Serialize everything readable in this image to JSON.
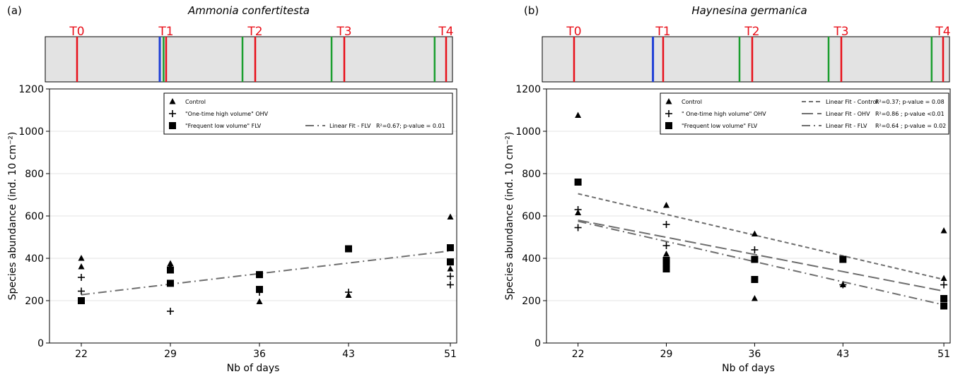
{
  "chart_data": [
    {
      "type": "scatter",
      "panel_label": "(a)",
      "title": "Ammonia confertitesta",
      "xlabel": "Nb of days",
      "ylabel": "Species abundance (ind. 10 cm⁻²)",
      "x_ticks": [
        22,
        29,
        36,
        43,
        51
      ],
      "xlim": [
        19.5,
        51.5
      ],
      "ylim": [
        0,
        1200
      ],
      "y_ticks": [
        0,
        200,
        400,
        600,
        800,
        1000,
        1200
      ],
      "grid": true,
      "legend_position": "top-right",
      "timeline": {
        "labels": [
          {
            "text": "T0",
            "x": 22
          },
          {
            "text": "T1",
            "x": 29
          },
          {
            "text": "T2",
            "x": 36
          },
          {
            "text": "T3",
            "x": 43
          },
          {
            "text": "T4",
            "x": 51
          }
        ],
        "red_lines": [
          22,
          29,
          36,
          43,
          51
        ],
        "green_lines": [
          28.8,
          35,
          42,
          50.1
        ],
        "blue_lines": [
          28.5
        ],
        "colors": {
          "red": "#e8101a",
          "green": "#1a9e2e",
          "blue": "#1f3fd6",
          "background": "#e3e3e3"
        }
      },
      "series": [
        {
          "name": "Control",
          "marker": "triangle",
          "points": [
            [
              22,
              400
            ],
            [
              22,
              360
            ],
            [
              29,
              375
            ],
            [
              29,
              360
            ],
            [
              36,
              195
            ],
            [
              43,
              225
            ],
            [
              51,
              595
            ],
            [
              51,
              350
            ]
          ]
        },
        {
          "name": "\"One-time high volume\" OHV",
          "marker": "plus",
          "points": [
            [
              22,
              310
            ],
            [
              22,
              245
            ],
            [
              29,
              150
            ],
            [
              36,
              240
            ],
            [
              43,
              240
            ],
            [
              51,
              315
            ],
            [
              51,
              275
            ]
          ]
        },
        {
          "name": "\"Frequent low volume\" FLV",
          "marker": "square",
          "points": [
            [
              22,
              200
            ],
            [
              29,
              345
            ],
            [
              29,
              282
            ],
            [
              36,
              323
            ],
            [
              36,
              253
            ],
            [
              43,
              445
            ],
            [
              51,
              450
            ],
            [
              51,
              383
            ]
          ]
        }
      ],
      "fits": [
        {
          "name": "Linear Fit - FLV",
          "stats": "R²=0.67; p-value = 0.01",
          "style": "dashdot",
          "from": [
            22,
            228
          ],
          "to": [
            51,
            435
          ]
        }
      ]
    },
    {
      "type": "scatter",
      "panel_label": "(b)",
      "title": "Haynesina germanica",
      "xlabel": "Nb of days",
      "ylabel": "Species abundance (ind. 10 cm⁻²)",
      "x_ticks": [
        22,
        29,
        36,
        43,
        51
      ],
      "xlim": [
        19.5,
        51.5
      ],
      "ylim": [
        0,
        1200
      ],
      "y_ticks": [
        0,
        200,
        400,
        600,
        800,
        1000,
        1200
      ],
      "grid": true,
      "legend_position": "top-right",
      "timeline": {
        "labels": [
          {
            "text": "T0",
            "x": 22
          },
          {
            "text": "T1",
            "x": 29
          },
          {
            "text": "T2",
            "x": 36
          },
          {
            "text": "T3",
            "x": 43
          },
          {
            "text": "T4",
            "x": 51
          }
        ],
        "red_lines": [
          22,
          29,
          36,
          43,
          51
        ],
        "green_lines": [
          35,
          42,
          50.1
        ],
        "blue_lines": [
          28.2
        ],
        "colors": {
          "red": "#e8101a",
          "green": "#1a9e2e",
          "blue": "#1f3fd6",
          "background": "#e3e3e3"
        }
      },
      "series": [
        {
          "name": "Control",
          "marker": "triangle",
          "points": [
            [
              22,
              1075
            ],
            [
              22,
              615
            ],
            [
              29,
              650
            ],
            [
              29,
              420
            ],
            [
              36,
              515
            ],
            [
              36,
              210
            ],
            [
              43,
              275
            ],
            [
              51,
              530
            ],
            [
              51,
              305
            ]
          ]
        },
        {
          "name": "\" One-time high volume\" OHV",
          "marker": "plus",
          "points": [
            [
              22,
              630
            ],
            [
              22,
              545
            ],
            [
              29,
              560
            ],
            [
              29,
              460
            ],
            [
              36,
              440
            ],
            [
              43,
              275
            ],
            [
              51,
              275
            ]
          ]
        },
        {
          "name": "\"Frequent low volume\" FLV",
          "marker": "square",
          "points": [
            [
              22,
              760
            ],
            [
              29,
              390
            ],
            [
              29,
              375
            ],
            [
              29,
              350
            ],
            [
              36,
              395
            ],
            [
              36,
              300
            ],
            [
              43,
              395
            ],
            [
              51,
              210
            ],
            [
              51,
              175
            ]
          ]
        }
      ],
      "fits": [
        {
          "name": "Linear Fit - Control",
          "stats": "R²=0.37; p-value = 0.08",
          "style": "short-dash",
          "from": [
            22,
            705
          ],
          "to": [
            51,
            300
          ]
        },
        {
          "name": "Linear Fit - OHV",
          "stats": "R²=0.86 ; p-value <0.01",
          "style": "long-dash",
          "from": [
            22,
            580
          ],
          "to": [
            51,
            245
          ]
        },
        {
          "name": "Linear Fit - FLV",
          "stats": "R²=0.64 ; p-value = 0.02",
          "style": "dashdot",
          "from": [
            22,
            575
          ],
          "to": [
            51,
            180
          ]
        }
      ]
    }
  ]
}
